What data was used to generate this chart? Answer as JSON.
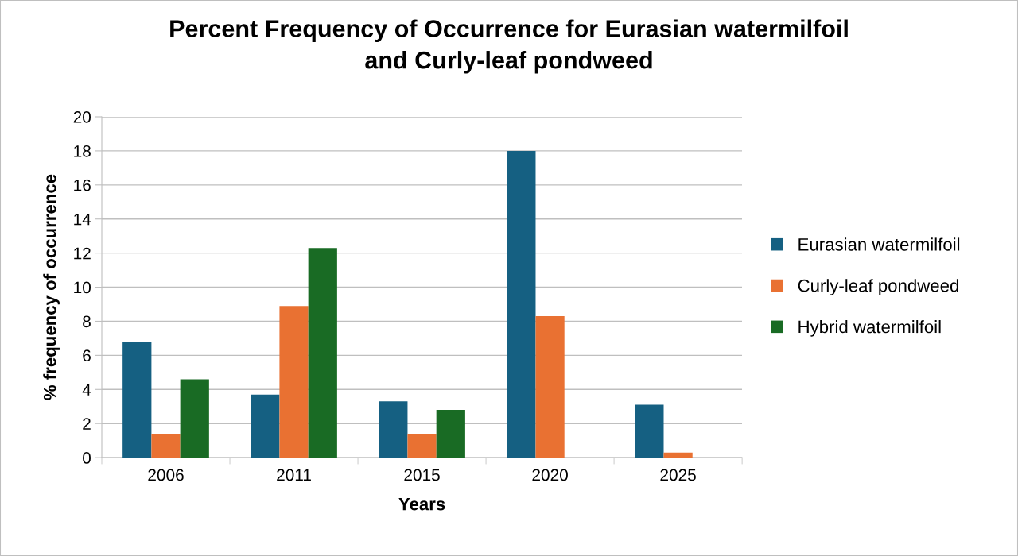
{
  "chart_data": {
    "type": "bar",
    "title": "Percent Frequency of Occurrence for Eurasian watermilfoil\nand Curly-leaf pondweed",
    "xlabel": "Years",
    "ylabel": "% frequency of occurrence",
    "categories": [
      "2006",
      "2011",
      "2015",
      "2020",
      "2025"
    ],
    "series": [
      {
        "name": "Eurasian watermilfoil",
        "color": "#156082",
        "values": [
          6.8,
          3.7,
          3.3,
          18.0,
          3.1
        ]
      },
      {
        "name": "Curly-leaf pondweed",
        "color": "#e97132",
        "values": [
          1.4,
          8.9,
          1.4,
          8.3,
          0.3
        ]
      },
      {
        "name": "Hybrid watermilfoil",
        "color": "#196b24",
        "values": [
          4.6,
          12.3,
          2.8,
          0,
          0
        ]
      }
    ],
    "ylim": [
      0,
      20
    ],
    "yticks": [
      0,
      2,
      4,
      6,
      8,
      10,
      12,
      14,
      16,
      18,
      20
    ],
    "grid": "y",
    "legend": "right"
  }
}
